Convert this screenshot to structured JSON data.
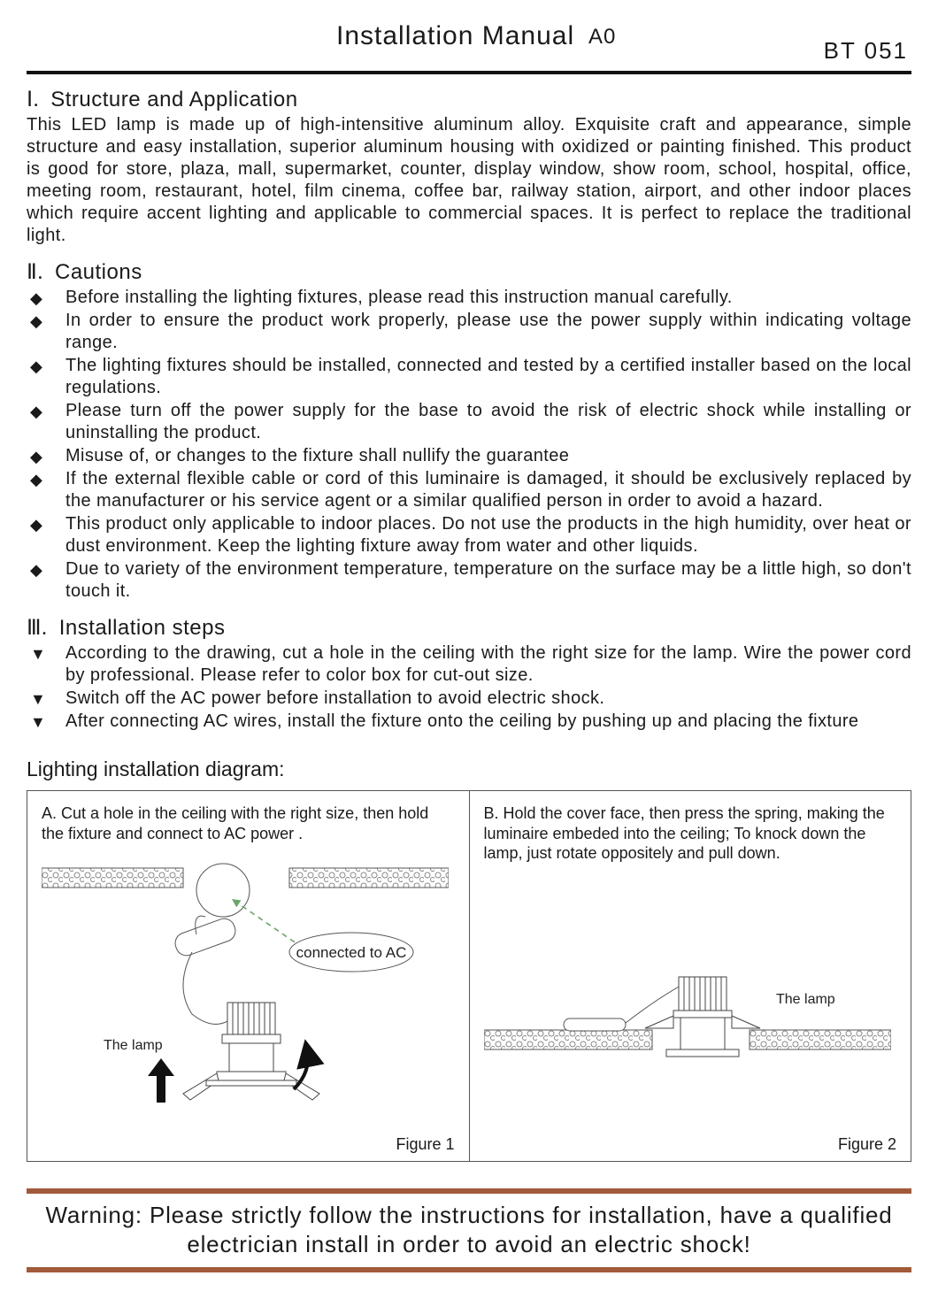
{
  "header": {
    "title": "Installation Manual",
    "revision": "A0",
    "product_code": "BT 051"
  },
  "section1": {
    "numeral": "Ⅰ.",
    "heading": "Structure and Application",
    "body": "This LED lamp is made up of high-intensitive aluminum alloy. Exquisite craft and appearance, simple structure and easy installation, superior aluminum housing with oxidized or painting finished. This product is good for store, plaza, mall, supermarket, counter, display window, show room, school, hospital, office, meeting room, restaurant, hotel, film cinema, coffee bar, railway station, airport, and other indoor places which require accent lighting and applicable to commercial spaces. It is perfect to replace the traditional light."
  },
  "section2": {
    "numeral": "Ⅱ.",
    "heading": "Cautions",
    "marker": "◆",
    "items": [
      "Before installing the lighting fixtures, please read this instruction manual carefully.",
      "In order to ensure the product work properly, please use the power supply within indicating voltage range.",
      "The lighting fixtures should be installed, connected and tested by a certified installer based on the local regulations.",
      "Please turn off the power supply for the base to avoid the risk of electric shock while installing or uninstalling the product.",
      "Misuse of, or changes to the fixture shall nullify the guarantee",
      "If the external flexible cable or cord of this luminaire is damaged, it should be exclusively replaced by the manufacturer or his service agent or a similar qualified person in order to avoid a hazard.",
      "This product only applicable to indoor places. Do not use the products in the high humidity, over heat or dust environment. Keep the lighting fixture away from water and other liquids.",
      "Due to variety of the environment temperature, temperature on the surface may be a little high, so don't touch it."
    ]
  },
  "section3": {
    "numeral": "Ⅲ.",
    "heading": "Installation steps",
    "marker": "▼",
    "items": [
      "According to the drawing, cut a hole in the ceiling with the right size for the lamp. Wire the power cord by professional. Please refer to color box for cut-out size.",
      "Switch off the AC power before installation to avoid electric shock.",
      "After connecting AC wires, install the fixture onto the ceiling by pushing up and placing the fixture"
    ]
  },
  "diagram": {
    "title": "Lighting installation diagram:",
    "panelA": {
      "caption": "A. Cut a hole in the ceiling with the right size, then hold the fixture and connect to AC power .",
      "callout_ac": "connected to AC",
      "lamp_label": "The lamp",
      "figure_label": "Figure 1"
    },
    "panelB": {
      "caption": "B. Hold the cover face, then press the spring, making the luminaire embeded into the ceiling; To knock down the lamp, just rotate oppositely and pull down.",
      "lamp_label": "The lamp",
      "figure_label": "Figure 2"
    },
    "colors": {
      "ceiling_pattern": "#888888",
      "line": "#333333",
      "dashed_arrow": "#6ba56b",
      "bg": "#ffffff"
    }
  },
  "warning": {
    "text": "Warning: Please strictly follow the instructions for installation, have a qualified electrician install in order to avoid an electric shock!",
    "border_color": "#a15a3a"
  }
}
